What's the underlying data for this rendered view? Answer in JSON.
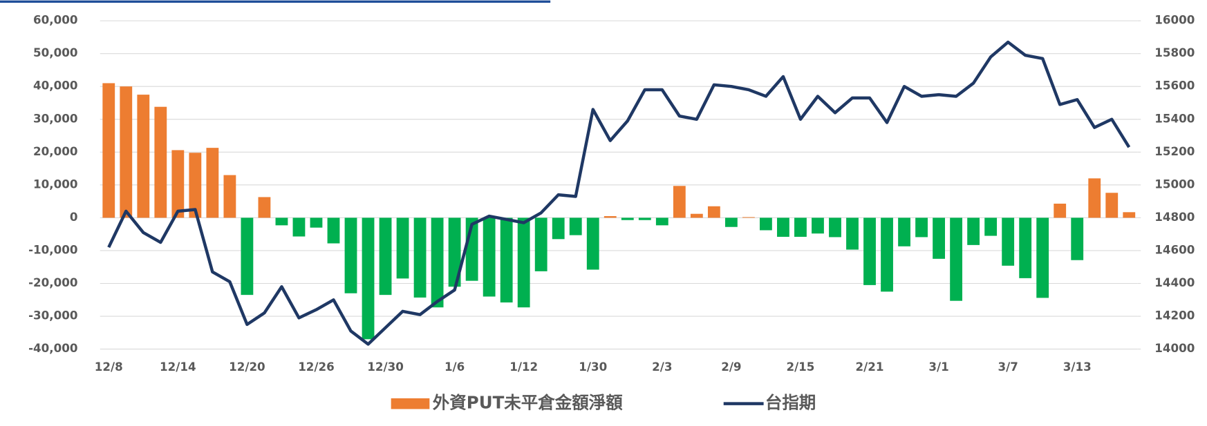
{
  "chart_data": {
    "type": "bar",
    "categories": [
      "12/8",
      null,
      null,
      null,
      "12/14",
      null,
      null,
      null,
      "12/20",
      null,
      null,
      null,
      "12/26",
      null,
      null,
      null,
      "12/30",
      null,
      null,
      null,
      "1/6",
      null,
      null,
      null,
      "1/12",
      null,
      null,
      null,
      "1/30",
      null,
      null,
      null,
      "2/3",
      null,
      null,
      null,
      "2/9",
      null,
      null,
      null,
      "2/15",
      null,
      null,
      null,
      "2/21",
      null,
      null,
      null,
      "3/1",
      null,
      null,
      null,
      "3/7",
      null,
      null,
      null,
      "3/13",
      null,
      null,
      null
    ],
    "series": [
      {
        "name": "外資PUT未平倉金額淨額",
        "type": "bar",
        "color": "#ed7d31",
        "neg_color": "#00b050",
        "values": [
          41000,
          40000,
          37500,
          33800,
          20600,
          19800,
          21300,
          13000,
          -23500,
          6300,
          -2300,
          -5700,
          -3000,
          -7800,
          -23000,
          -37000,
          -23500,
          -18500,
          -24300,
          -27300,
          -21000,
          -19200,
          -24000,
          -25800,
          -27300,
          -16300,
          -6500,
          -5300,
          -15800,
          500,
          -700,
          -700,
          -2300,
          9700,
          1200,
          3500,
          -2800,
          200,
          -3800,
          -5800,
          -5800,
          -4800,
          -5900,
          -9700,
          -20500,
          -22500,
          -8700,
          -5900,
          -12500,
          -25300,
          -8300,
          -5500,
          -14600,
          -18400,
          -24400,
          4300,
          -12900,
          12000,
          7600,
          1700
        ]
      },
      {
        "name": "台指期",
        "type": "line",
        "axis": "y2",
        "color": "#1f3864",
        "values": [
          14620,
          14840,
          14710,
          14650,
          14840,
          14850,
          14470,
          14410,
          14150,
          14220,
          14380,
          14190,
          14240,
          14300,
          14110,
          14030,
          14130,
          14230,
          14210,
          14290,
          14360,
          14760,
          14810,
          14790,
          14770,
          14830,
          14940,
          14930,
          15460,
          15270,
          15390,
          15580,
          15580,
          15420,
          15400,
          15610,
          15600,
          15580,
          15540,
          15660,
          15400,
          15540,
          15440,
          15530,
          15530,
          15380,
          15600,
          15540,
          15550,
          15540,
          15620,
          15780,
          15870,
          15790,
          15770,
          15490,
          15520,
          15350,
          15400,
          15230
        ]
      }
    ],
    "ylim": [
      -40000,
      60000
    ],
    "yticks": [
      {
        "value": -40000,
        "label": "-40,000"
      },
      {
        "value": -30000,
        "label": "-30,000"
      },
      {
        "value": -20000,
        "label": "-20,000"
      },
      {
        "value": -10000,
        "label": "-10,000"
      },
      0,
      {
        "value": 10000,
        "label": "10,000"
      },
      {
        "value": 20000,
        "label": "20,000"
      },
      {
        "value": 30000,
        "label": "30,000"
      },
      {
        "value": 40000,
        "label": "40,000"
      },
      {
        "value": 50000,
        "label": "50,000"
      },
      {
        "value": 60000,
        "label": "60,000"
      }
    ],
    "y2lim": [
      14000,
      16000
    ],
    "y2ticks": [
      14000,
      14200,
      14400,
      14600,
      14800,
      15000,
      15200,
      15400,
      15600,
      15800,
      16000
    ],
    "grid": true,
    "legend": "bottom"
  }
}
